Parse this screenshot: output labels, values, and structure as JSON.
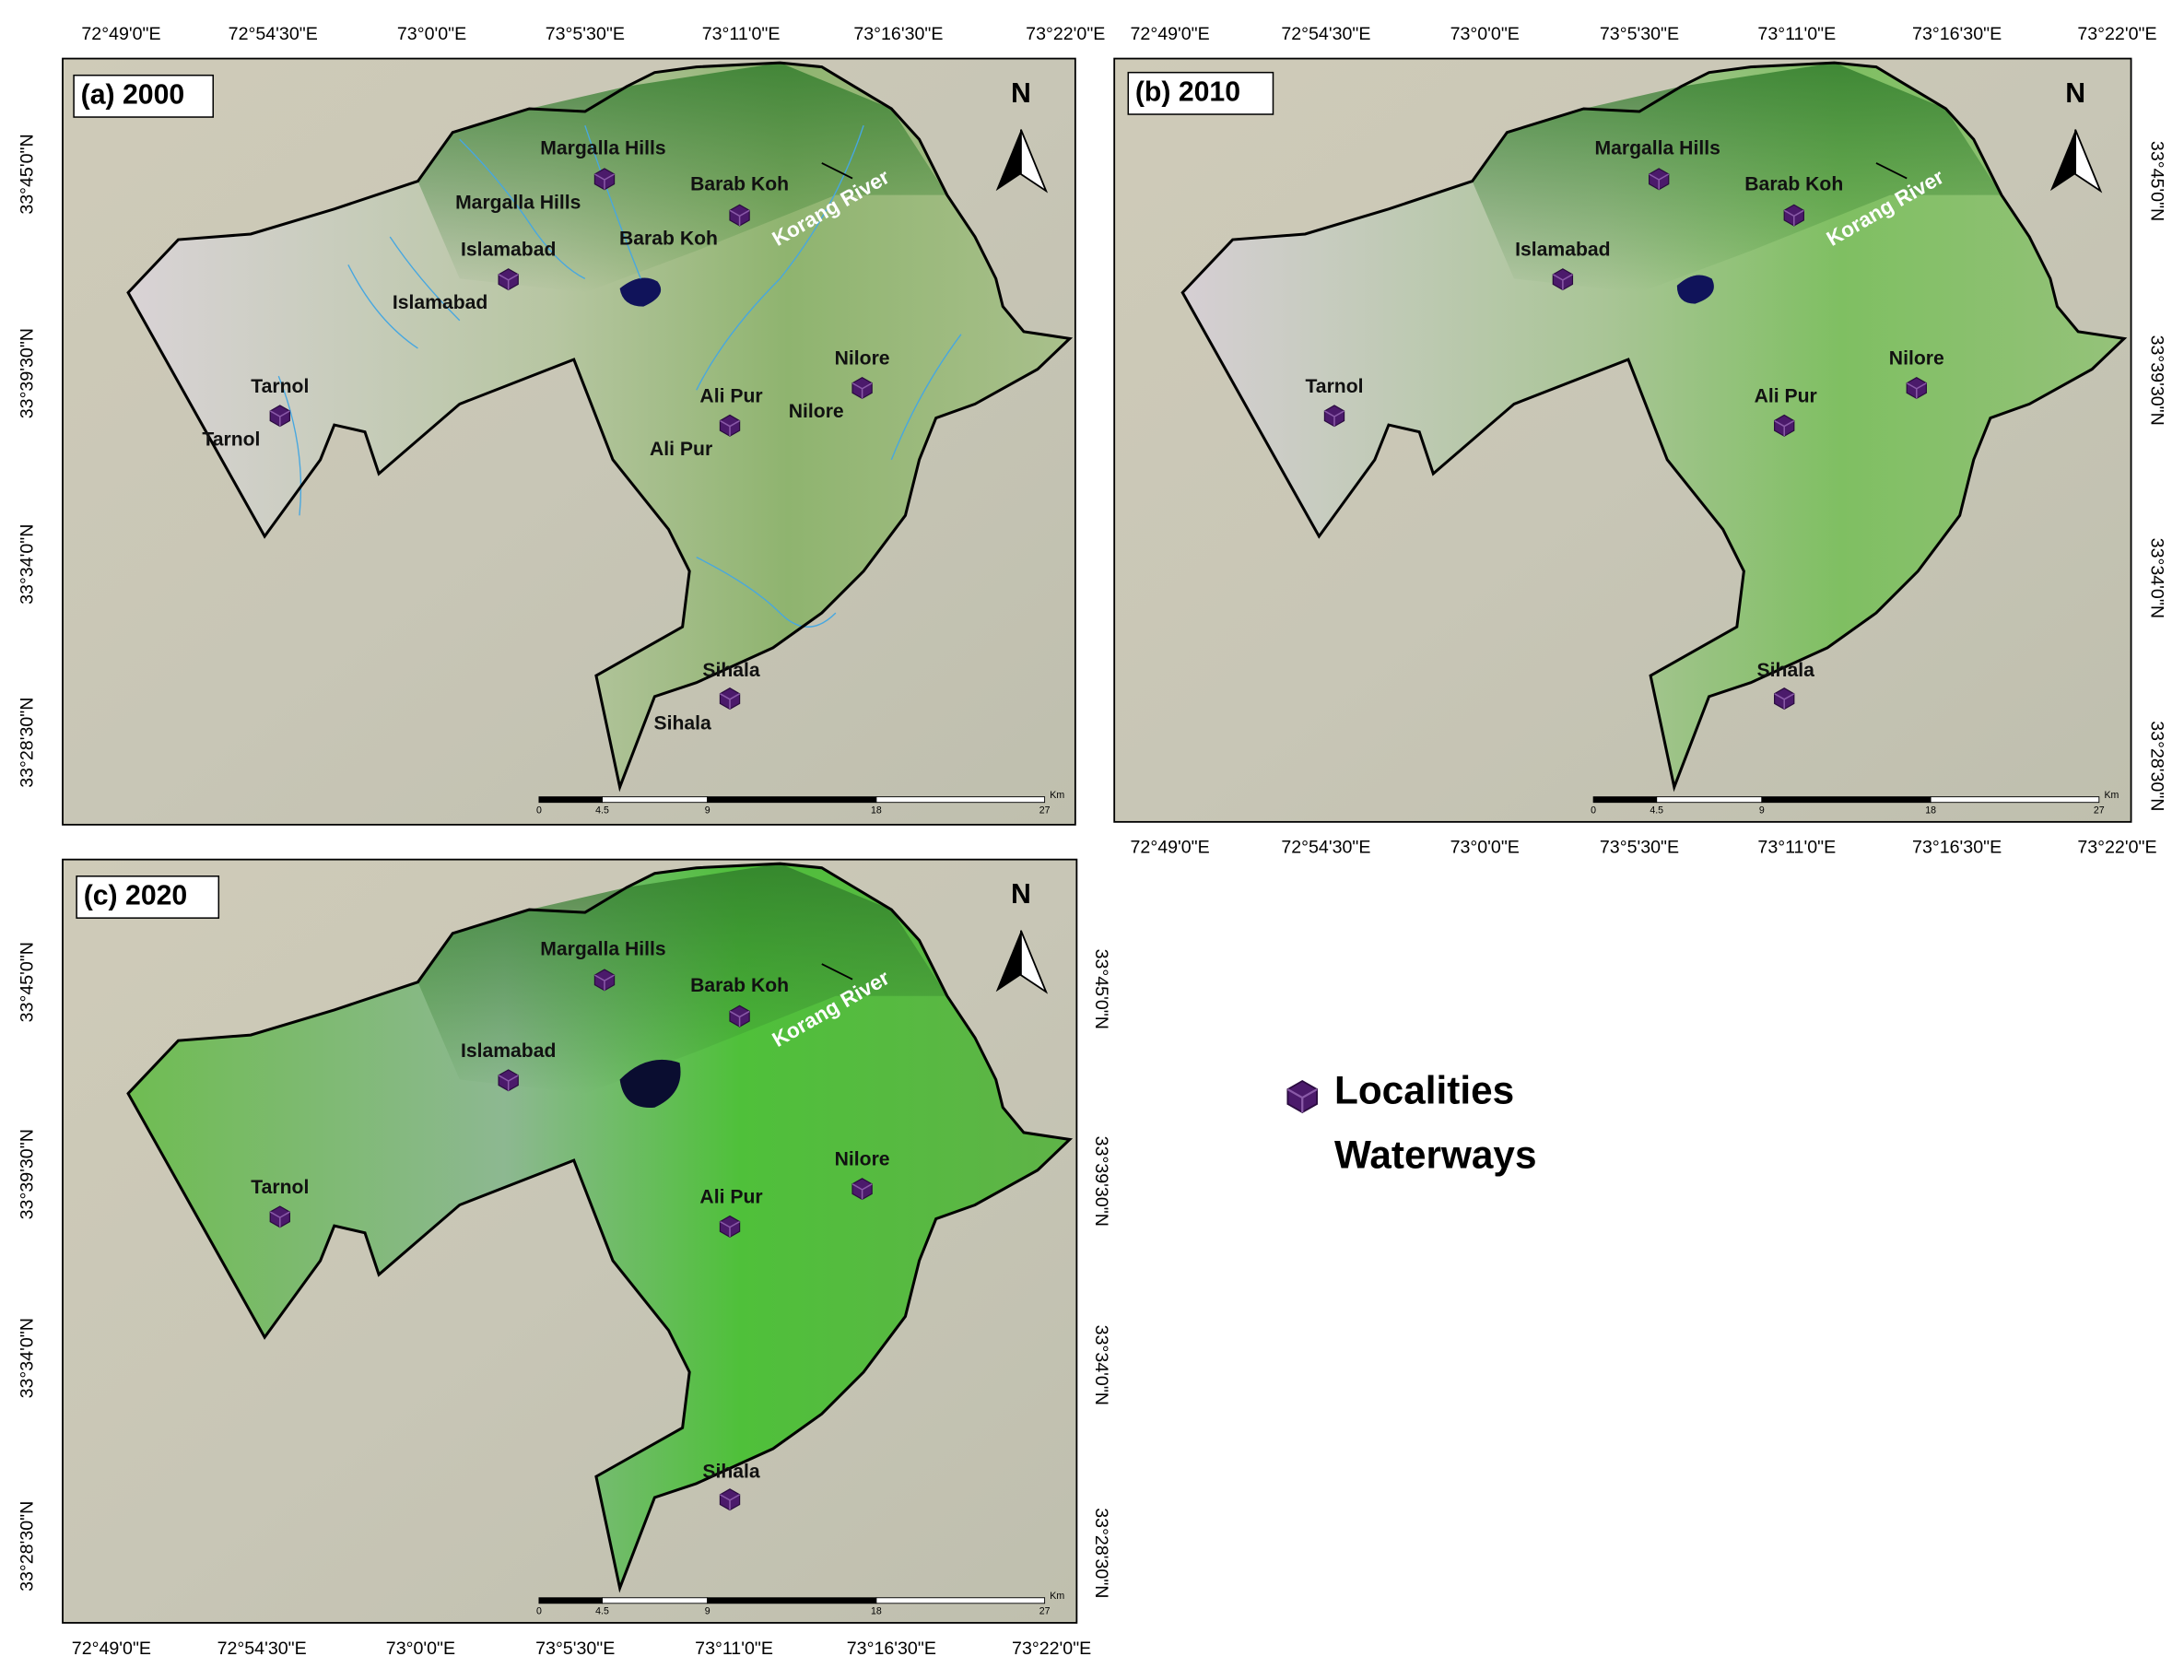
{
  "panels": [
    {
      "title": "(a) 2000",
      "top_labels": [
        "72°49'0\"E",
        "72°54'30\"E",
        "73°0'0\"E",
        "73°5'30\"E",
        "73°11'0\"E",
        "73°16'30\"E",
        "73°22'0\"E"
      ],
      "left_labels": [
        "33°45'0\"N",
        "33°39'30\"N",
        "33°34'0\"N",
        "33°28'30\"N"
      ],
      "places": [
        "Margalla Hills",
        "Barab Koh",
        "Margalla Hills",
        "Barab Koh",
        "Islamabad",
        "Islamabad",
        "Tarnol",
        "Tarnol",
        "Ali Pur",
        "Nilore",
        "Nilore",
        "Ali Pur",
        "Sihala",
        "Sihala"
      ],
      "river": "Korang River",
      "north": "N",
      "scale_ticks": [
        0,
        4.5,
        9,
        18,
        27
      ],
      "scale_unit": "Km"
    },
    {
      "title": "(b) 2010",
      "top_labels": [
        "72°49'0\"E",
        "72°54'30\"E",
        "73°0'0\"E",
        "73°5'30\"E",
        "73°11'0\"E",
        "73°16'30\"E",
        "73°22'0\"E"
      ],
      "bottom_labels": [
        "72°49'0\"E",
        "72°54'30\"E",
        "73°0'0\"E",
        "73°5'30\"E",
        "73°11'0\"E",
        "73°16'30\"E",
        "73°22'0\"E"
      ],
      "right_labels": [
        "33°45'0\"N",
        "33°39'30\"N",
        "33°34'0\"N",
        "33°28'30\"N"
      ],
      "places": [
        "Margalla Hills",
        "Barab Koh",
        "Islamabad",
        "Tarnol",
        "Ali Pur",
        "Nilore",
        "Sihala"
      ],
      "river": "Korang River",
      "north": "N",
      "scale_ticks": [
        0,
        4.5,
        9,
        18,
        27
      ],
      "scale_unit": "Km"
    },
    {
      "title": "(c) 2020",
      "bottom_labels": [
        "72°49'0\"E",
        "72°54'30\"E",
        "73°0'0\"E",
        "73°5'30\"E",
        "73°11'0\"E",
        "73°16'30\"E",
        "73°22'0\"E"
      ],
      "left_labels": [
        "33°45'0\"N",
        "33°39'30\"N",
        "33°34'0\"N",
        "33°28'30\"N"
      ],
      "right_labels": [
        "33°45'0\"N",
        "33°39'30\"N",
        "33°34'0\"N",
        "33°28'30\"N"
      ],
      "places": [
        "Margalla Hills",
        "Barab Koh",
        "Islamabad",
        "Tarnol",
        "Ali Pur",
        "Nilore",
        "Sihala"
      ],
      "river": "Korang River",
      "north": "N",
      "scale_ticks": [
        0,
        4.5,
        9,
        18,
        27
      ],
      "scale_unit": "Km"
    }
  ],
  "legend": [
    "Localities",
    "Waterways"
  ]
}
